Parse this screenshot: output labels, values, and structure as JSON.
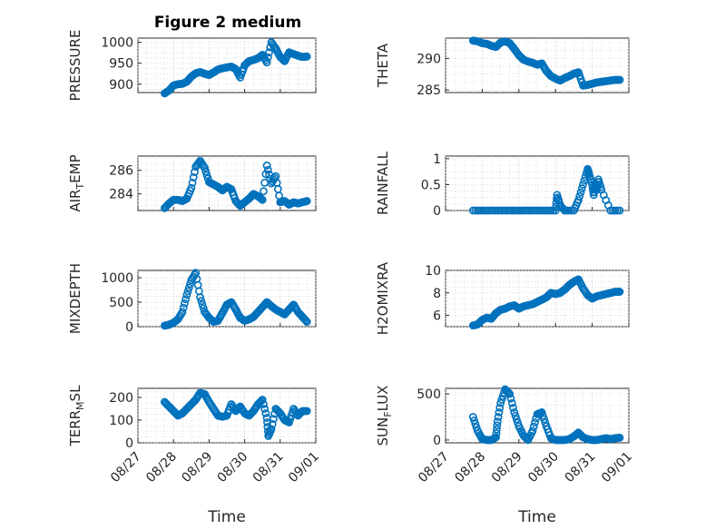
{
  "figure": {
    "title": "Figure 2 medium"
  },
  "colors": {
    "marker": "#0072BD",
    "axis": "#262626",
    "grid": "#d0d0d0"
  },
  "chart_data": [
    {
      "type": "scatter",
      "title": "Figure 2 medium",
      "ylabel": "PRESSURE",
      "xlim": [
        "08/27",
        "09/01"
      ],
      "ylim": [
        880,
        1010
      ],
      "yticks": [
        900,
        950,
        1000
      ],
      "x": [
        "08/27 18:00",
        "08/27 21:00",
        "08/28 00:00",
        "08/28 03:00",
        "08/28 06:00",
        "08/28 09:00",
        "08/28 12:00",
        "08/28 15:00",
        "08/28 18:00",
        "08/28 21:00",
        "08/29 00:00",
        "08/29 03:00",
        "08/29 06:00",
        "08/29 09:00",
        "08/29 12:00",
        "08/29 15:00",
        "08/29 18:00",
        "08/29 21:00",
        "08/30 00:00",
        "08/30 03:00",
        "08/30 06:00",
        "08/30 09:00",
        "08/30 12:00",
        "08/30 15:00",
        "08/30 18:00",
        "08/30 21:00",
        "08/31 00:00",
        "08/31 03:00",
        "08/31 06:00",
        "08/31 09:00",
        "08/31 12:00",
        "08/31 15:00",
        "08/31 18:00"
      ],
      "y": [
        878,
        885,
        897,
        900,
        901,
        906,
        918,
        926,
        929,
        925,
        922,
        928,
        935,
        938,
        940,
        942,
        936,
        916,
        945,
        955,
        958,
        962,
        970,
        952,
        1000,
        985,
        965,
        955,
        976,
        972,
        968,
        965,
        966
      ]
    },
    {
      "type": "scatter",
      "ylabel": "THETA",
      "xlim": [
        "08/27",
        "09/01"
      ],
      "ylim": [
        284.6,
        293.2
      ],
      "yticks": [
        285,
        290
      ],
      "x": [
        "08/27 18:00",
        "08/27 21:00",
        "08/28 00:00",
        "08/28 03:00",
        "08/28 06:00",
        "08/28 09:00",
        "08/28 12:00",
        "08/28 15:00",
        "08/28 18:00",
        "08/28 21:00",
        "08/29 00:00",
        "08/29 03:00",
        "08/29 06:00",
        "08/29 09:00",
        "08/29 12:00",
        "08/29 15:00",
        "08/29 18:00",
        "08/29 21:00",
        "08/30 00:00",
        "08/30 03:00",
        "08/30 06:00",
        "08/30 09:00",
        "08/30 12:00",
        "08/30 15:00",
        "08/30 18:00",
        "08/30 21:00",
        "08/31 00:00",
        "08/31 03:00",
        "08/31 06:00",
        "08/31 09:00",
        "08/31 12:00",
        "08/31 15:00",
        "08/31 18:00"
      ],
      "y": [
        292.8,
        292.7,
        292.4,
        292.3,
        292.0,
        291.8,
        292.5,
        292.7,
        292.4,
        291.5,
        290.5,
        289.8,
        289.5,
        289.3,
        289.0,
        289.2,
        288.0,
        287.2,
        286.8,
        286.5,
        286.9,
        287.2,
        287.6,
        287.8,
        285.7,
        285.8,
        286.0,
        286.2,
        286.3,
        286.4,
        286.5,
        286.6,
        286.6
      ]
    },
    {
      "type": "scatter",
      "ylabel": "AIR_TEMP",
      "xlim": [
        "08/27",
        "09/01"
      ],
      "ylim": [
        282.6,
        287.2
      ],
      "yticks": [
        284,
        286
      ],
      "x": [
        "08/27 18:00",
        "08/27 21:00",
        "08/28 00:00",
        "08/28 03:00",
        "08/28 06:00",
        "08/28 09:00",
        "08/28 12:00",
        "08/28 15:00",
        "08/28 18:00",
        "08/28 21:00",
        "08/29 00:00",
        "08/29 03:00",
        "08/29 06:00",
        "08/29 09:00",
        "08/29 12:00",
        "08/29 15:00",
        "08/29 18:00",
        "08/29 21:00",
        "08/30 00:00",
        "08/30 03:00",
        "08/30 06:00",
        "08/30 09:00",
        "08/30 12:00",
        "08/30 15:00",
        "08/30 18:00",
        "08/30 21:00",
        "08/31 00:00",
        "08/31 03:00",
        "08/31 06:00",
        "08/31 09:00",
        "08/31 12:00",
        "08/31 15:00",
        "08/31 18:00"
      ],
      "y": [
        282.8,
        283.2,
        283.5,
        283.5,
        283.4,
        283.6,
        284.5,
        286.3,
        286.8,
        286.2,
        285.0,
        284.8,
        284.6,
        284.3,
        284.6,
        284.4,
        283.4,
        283.0,
        283.3,
        283.6,
        284.0,
        283.8,
        283.5,
        286.4,
        284.9,
        285.5,
        283.3,
        283.4,
        283.1,
        283.3,
        283.2,
        283.3,
        283.4
      ]
    },
    {
      "type": "scatter",
      "ylabel": "RAINFALL",
      "xlim": [
        "08/27",
        "09/01"
      ],
      "ylim": [
        0,
        1.05
      ],
      "yticks": [
        0,
        0.5,
        1
      ],
      "x": [
        "08/27 18:00",
        "08/28 00:00",
        "08/28 06:00",
        "08/28 12:00",
        "08/28 18:00",
        "08/29 00:00",
        "08/29 06:00",
        "08/29 12:00",
        "08/29 18:00",
        "08/30 00:00",
        "08/30 01:00",
        "08/30 03:00",
        "08/30 06:00",
        "08/30 12:00",
        "08/30 15:00",
        "08/30 18:00",
        "08/30 21:00",
        "08/30 22:00",
        "08/31 00:00",
        "08/31 01:00",
        "08/31 02:00",
        "08/31 03:00",
        "08/31 04:00",
        "08/31 06:00",
        "08/31 12:00",
        "08/31 18:00"
      ],
      "y": [
        0,
        0,
        0,
        0,
        0,
        0,
        0,
        0,
        0,
        0,
        0.3,
        0.1,
        0,
        0,
        0.2,
        0.5,
        0.8,
        0.7,
        0.5,
        0.3,
        0.5,
        0.4,
        0.6,
        0.4,
        0,
        0
      ]
    },
    {
      "type": "scatter",
      "ylabel": "MIXDEPTH",
      "xlim": [
        "08/27",
        "09/01"
      ],
      "ylim": [
        0,
        1150
      ],
      "yticks": [
        0,
        500,
        1000
      ],
      "x": [
        "08/27 18:00",
        "08/27 21:00",
        "08/28 00:00",
        "08/28 03:00",
        "08/28 06:00",
        "08/28 09:00",
        "08/28 12:00",
        "08/28 15:00",
        "08/28 18:00",
        "08/28 21:00",
        "08/29 00:00",
        "08/29 03:00",
        "08/29 06:00",
        "08/29 09:00",
        "08/29 12:00",
        "08/29 15:00",
        "08/29 18:00",
        "08/29 21:00",
        "08/30 00:00",
        "08/30 03:00",
        "08/30 06:00",
        "08/30 09:00",
        "08/30 12:00",
        "08/30 15:00",
        "08/30 18:00",
        "08/30 21:00",
        "08/31 00:00",
        "08/31 03:00",
        "08/31 06:00",
        "08/31 09:00",
        "08/31 12:00",
        "08/31 15:00",
        "08/31 18:00"
      ],
      "y": [
        20,
        40,
        80,
        150,
        300,
        650,
        950,
        1100,
        600,
        300,
        180,
        100,
        120,
        280,
        450,
        500,
        350,
        180,
        120,
        150,
        200,
        300,
        400,
        500,
        420,
        350,
        300,
        250,
        350,
        450,
        300,
        200,
        100
      ]
    },
    {
      "type": "scatter",
      "ylabel": "H2OMIXRA",
      "xlim": [
        "08/27",
        "09/01"
      ],
      "ylim": [
        5,
        10
      ],
      "yticks": [
        6,
        8,
        10
      ],
      "x": [
        "08/27 18:00",
        "08/27 21:00",
        "08/28 00:00",
        "08/28 03:00",
        "08/28 06:00",
        "08/28 09:00",
        "08/28 12:00",
        "08/28 15:00",
        "08/28 18:00",
        "08/28 21:00",
        "08/29 00:00",
        "08/29 03:00",
        "08/29 06:00",
        "08/29 09:00",
        "08/29 12:00",
        "08/29 15:00",
        "08/29 18:00",
        "08/29 21:00",
        "08/30 00:00",
        "08/30 03:00",
        "08/30 06:00",
        "08/30 09:00",
        "08/30 12:00",
        "08/30 15:00",
        "08/30 18:00",
        "08/30 21:00",
        "08/31 00:00",
        "08/31 03:00",
        "08/31 06:00",
        "08/31 09:00",
        "08/31 12:00",
        "08/31 15:00",
        "08/31 18:00"
      ],
      "y": [
        5.1,
        5.2,
        5.6,
        5.8,
        5.7,
        6.2,
        6.5,
        6.6,
        6.8,
        6.9,
        6.6,
        6.8,
        6.9,
        7.0,
        7.2,
        7.4,
        7.6,
        8.0,
        7.9,
        8.0,
        8.3,
        8.7,
        9.0,
        9.2,
        8.4,
        7.8,
        7.5,
        7.7,
        7.8,
        7.9,
        8.0,
        8.1,
        8.1
      ]
    },
    {
      "type": "scatter",
      "ylabel": "TERR_MSL",
      "xlim": [
        "08/27",
        "09/01"
      ],
      "ylim": [
        0,
        240
      ],
      "yticks": [
        0,
        100,
        200
      ],
      "x": [
        "08/27 18:00",
        "08/27 21:00",
        "08/28 00:00",
        "08/28 03:00",
        "08/28 06:00",
        "08/28 09:00",
        "08/28 12:00",
        "08/28 15:00",
        "08/28 18:00",
        "08/28 21:00",
        "08/29 00:00",
        "08/29 03:00",
        "08/29 06:00",
        "08/29 09:00",
        "08/29 12:00",
        "08/29 15:00",
        "08/29 18:00",
        "08/29 21:00",
        "08/30 00:00",
        "08/30 03:00",
        "08/30 06:00",
        "08/30 09:00",
        "08/30 12:00",
        "08/30 15:00",
        "08/30 16:00",
        "08/30 18:00",
        "08/30 21:00",
        "08/31 00:00",
        "08/31 03:00",
        "08/31 06:00",
        "08/31 09:00",
        "08/31 12:00",
        "08/31 15:00",
        "08/31 18:00"
      ],
      "y": [
        180,
        160,
        140,
        120,
        130,
        150,
        170,
        190,
        220,
        215,
        180,
        150,
        120,
        115,
        120,
        170,
        140,
        160,
        130,
        120,
        140,
        170,
        190,
        110,
        30,
        60,
        150,
        130,
        100,
        90,
        150,
        120,
        140,
        140
      ]
    },
    {
      "type": "scatter",
      "ylabel": "SUN_FLUX",
      "xlim": [
        "08/27",
        "09/01"
      ],
      "ylim": [
        -30,
        560
      ],
      "yticks": [
        0,
        500
      ],
      "x": [
        "08/27 18:00",
        "08/27 21:00",
        "08/28 00:00",
        "08/28 03:00",
        "08/28 06:00",
        "08/28 09:00",
        "08/28 10:00",
        "08/28 12:00",
        "08/28 15:00",
        "08/28 18:00",
        "08/28 21:00",
        "08/29 00:00",
        "08/29 03:00",
        "08/29 06:00",
        "08/29 09:00",
        "08/29 12:00",
        "08/29 15:00",
        "08/29 18:00",
        "08/29 21:00",
        "08/30 00:00",
        "08/30 03:00",
        "08/30 06:00",
        "08/30 09:00",
        "08/30 12:00",
        "08/30 15:00",
        "08/30 18:00",
        "08/30 21:00",
        "08/31 00:00",
        "08/31 03:00",
        "08/31 06:00",
        "08/31 09:00",
        "08/31 12:00",
        "08/31 15:00",
        "08/31 18:00"
      ],
      "y": [
        250,
        100,
        10,
        0,
        0,
        30,
        200,
        400,
        550,
        500,
        300,
        150,
        50,
        0,
        100,
        280,
        300,
        150,
        20,
        0,
        0,
        0,
        10,
        40,
        80,
        30,
        10,
        0,
        0,
        10,
        20,
        10,
        20,
        25
      ]
    }
  ],
  "xaxis": {
    "ticklabels": [
      "08/27",
      "08/28",
      "08/29",
      "08/30",
      "08/31",
      "09/01"
    ],
    "label": "Time"
  }
}
